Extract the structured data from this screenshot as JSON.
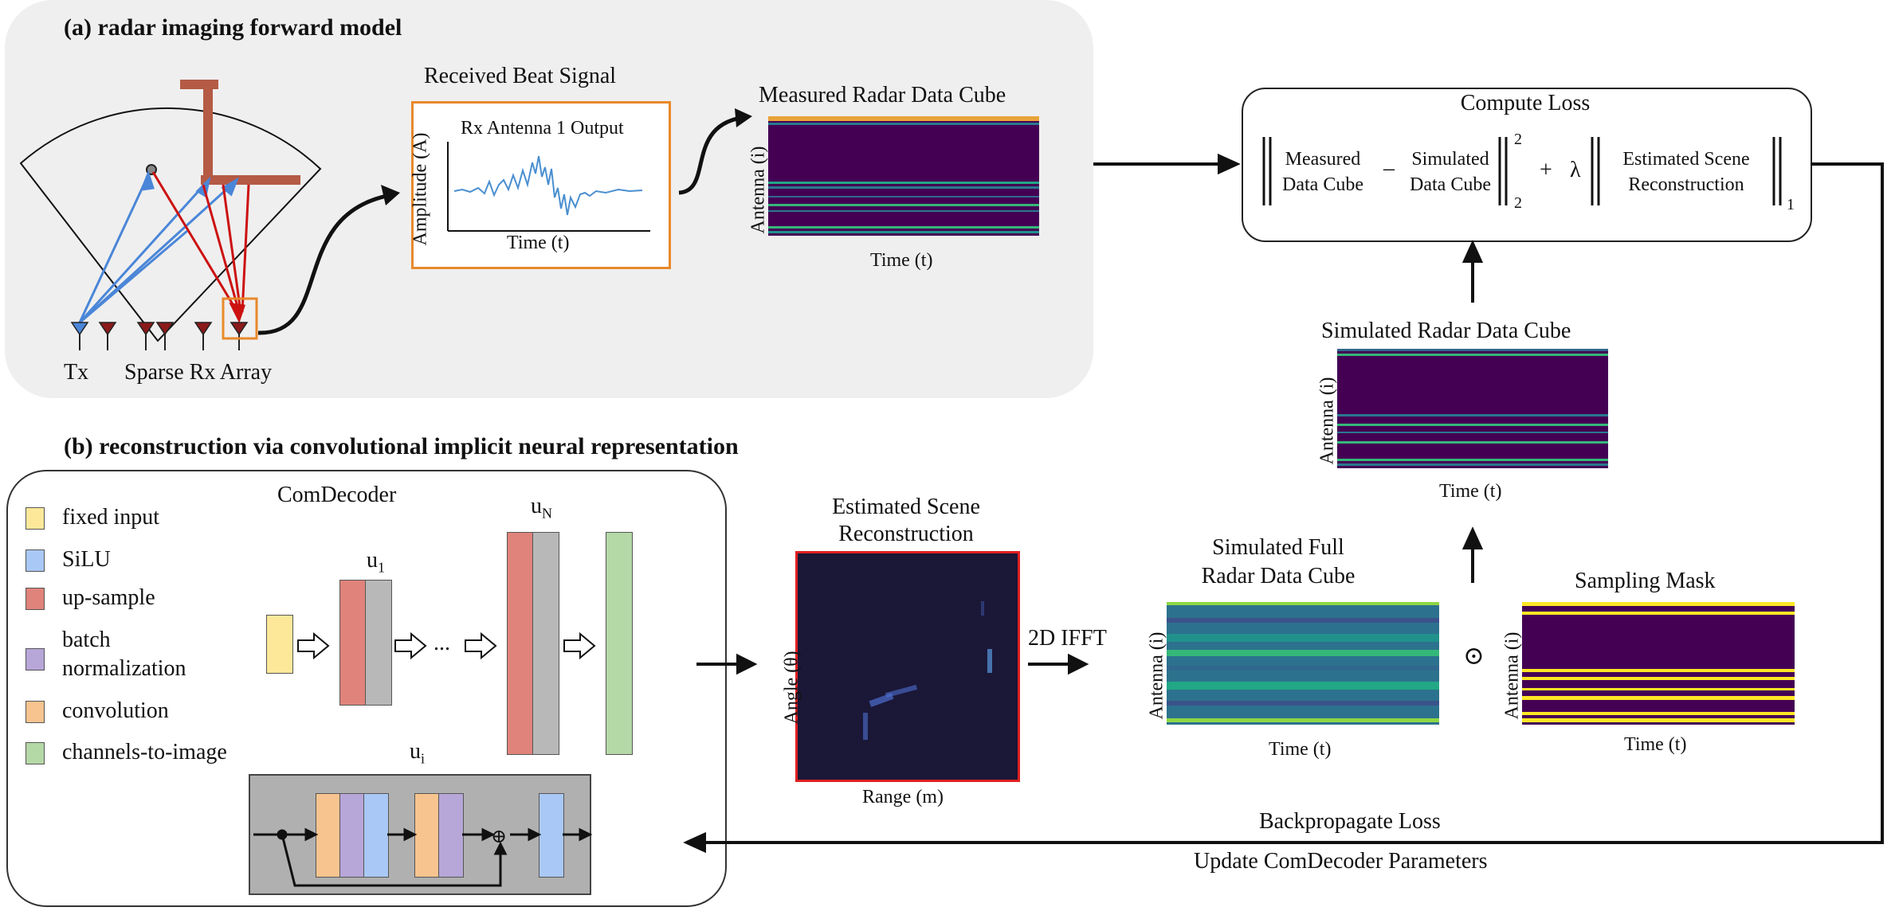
{
  "panel_a": {
    "heading": "(a) radar imaging forward model",
    "tx_label": "Tx",
    "rx_label": "Sparse Rx Array",
    "beat": {
      "title": "Received Beat Signal",
      "inner_title": "Rx Antenna 1 Output",
      "ylabel": "Amplitude (A)",
      "xlabel": "Time (t)"
    },
    "measured_cube": {
      "title": "Measured Radar Data Cube",
      "ylabel": "Antenna (i)",
      "xlabel": "Time (t)"
    }
  },
  "loss": {
    "title": "Compute Loss",
    "term1_line1": "Measured",
    "term1_line2": "Data Cube",
    "minus": "–",
    "term2_line1": "Simulated",
    "term2_line2": "Data Cube",
    "sup2": "2",
    "sub2": "2",
    "plus": "+",
    "lambda": "λ",
    "term3_line1": "Estimated Scene",
    "term3_line2": "Reconstruction",
    "sub1": "1"
  },
  "simulated_cube": {
    "title": "Simulated Radar Data Cube",
    "ylabel": "Antenna (i)",
    "xlabel": "Time (t)"
  },
  "panel_b": {
    "heading": "(b) reconstruction via convolutional implicit neural representation",
    "decoder_title": "ComDecoder",
    "u1": "u",
    "u1_sub": "1",
    "uN": "u",
    "uN_sub": "N",
    "ui": "u",
    "ui_sub": "i",
    "ellipsis": "...",
    "oplus": "⊕",
    "legend": [
      {
        "label": "fixed input",
        "color": "#fde89a"
      },
      {
        "label": "SiLU",
        "color": "#a9c8f5"
      },
      {
        "label": "up-sample",
        "color": "#e0837a"
      },
      {
        "label": "batch",
        "color": "#b7a6d8"
      },
      {
        "label": "normalization",
        "color": ""
      },
      {
        "label": "convolution",
        "color": "#f7c48f"
      },
      {
        "label": "channels-to-image",
        "color": "#b5d8a7"
      }
    ]
  },
  "estimated": {
    "title_line1": "Estimated Scene",
    "title_line2": "Reconstruction",
    "ylabel": "Angle (θ)",
    "xlabel": "Range (m)"
  },
  "ifft_label": "2D IFFT",
  "full_cube": {
    "title_line1": "Simulated Full",
    "title_line2": "Radar Data Cube",
    "ylabel": "Antenna (i)",
    "xlabel": "Time (t)"
  },
  "odot": "⊙",
  "mask": {
    "title": "Sampling Mask",
    "ylabel": "Antenna (i)",
    "xlabel": "Time (t)"
  },
  "backprop": {
    "line1": "Backpropagate Loss",
    "line2": "Update ComDecoder Parameters"
  },
  "colors": {
    "viridis_dark": "#440154",
    "viridis_mid": "#21918c",
    "viridis_yellow": "#fde725",
    "tx_arrow": "#4a86d8",
    "rx_arrow": "#cc1111",
    "highlight_box": "#e8892b",
    "estimated_border": "#e02020"
  }
}
